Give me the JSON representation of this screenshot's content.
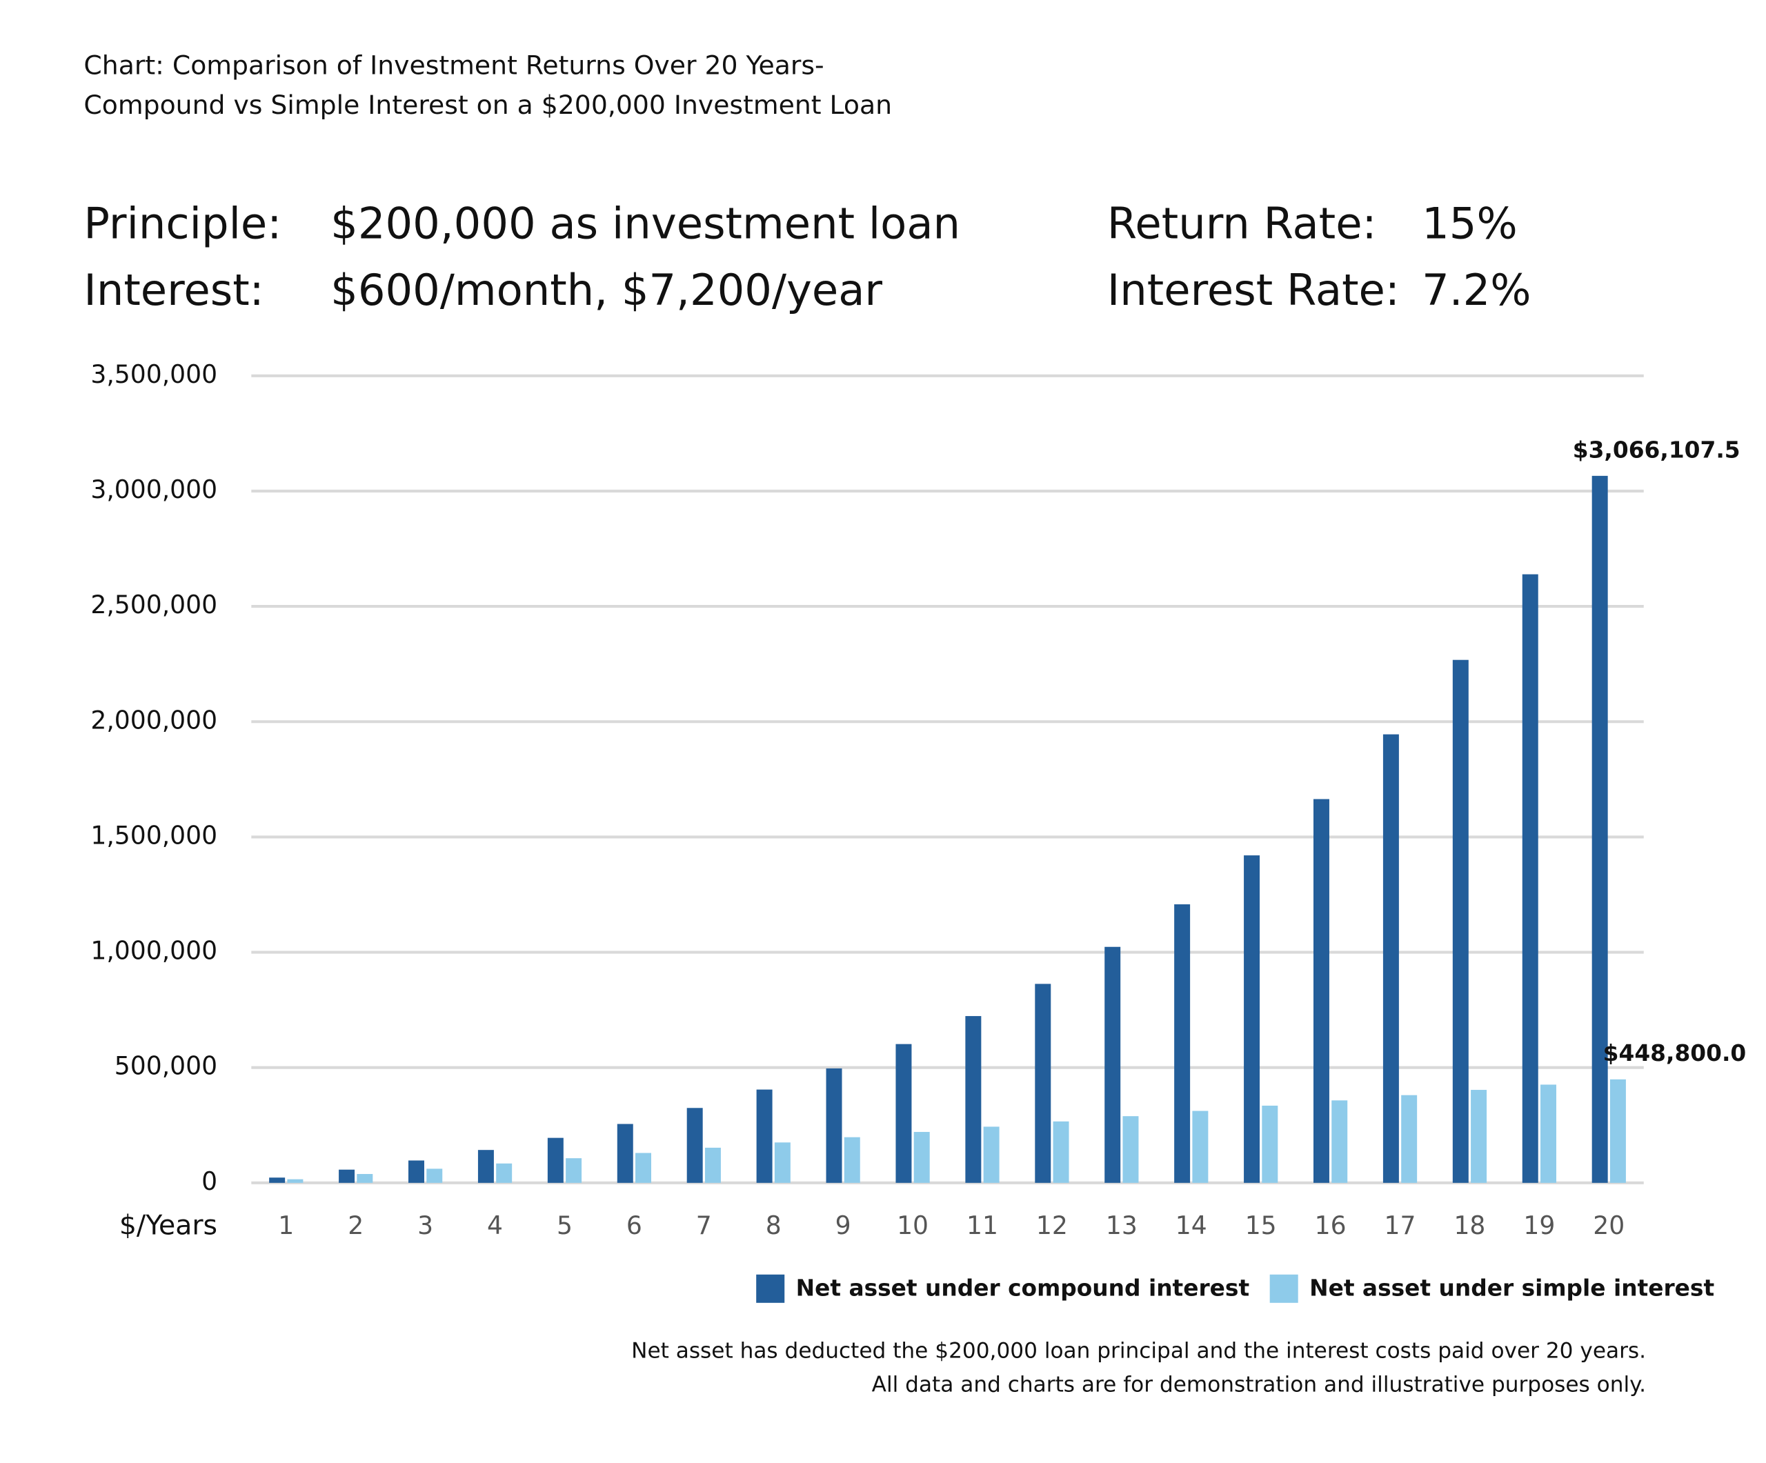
{
  "chart_data": {
    "type": "bar",
    "title": [
      "Chart: Comparison of Investment Returns Over 20 Years-",
      "Compound vs Simple Interest on a $200,000 Investment Loan"
    ],
    "info": [
      [
        "Principle:",
        "$200,000 as investment loan",
        "Return Rate:",
        "15%"
      ],
      [
        "Interest:",
        "$600/month, $7,200/year",
        "Interest Rate:",
        "7.2%"
      ]
    ],
    "x_label": "$/Years",
    "categories": [
      "1",
      "2",
      "3",
      "4",
      "5",
      "6",
      "7",
      "8",
      "9",
      "10",
      "11",
      "12",
      "13",
      "14",
      "15",
      "16",
      "17",
      "18",
      "19",
      "20"
    ],
    "series": [
      {
        "name": "Net asset under compound interest",
        "color": "#235e9a",
        "values": [
          22800,
          57300,
          96975,
          142600,
          195100,
          255400,
          324800,
          404600,
          496400,
          601900,
          723300,
          862900,
          1023400,
          1207900,
          1420200,
          1664300,
          1945100,
          2267900,
          2639200,
          3066107.5
        ],
        "value_labels": [
          null,
          null,
          null,
          null,
          null,
          null,
          null,
          null,
          null,
          null,
          null,
          null,
          null,
          null,
          null,
          null,
          null,
          null,
          null,
          "$3,066,107.5"
        ]
      },
      {
        "name": "Net asset under simple interest",
        "color": "#8ecbea",
        "values": [
          15600,
          38400,
          61200,
          84000,
          106800,
          129600,
          152400,
          175200,
          198000,
          220800,
          243600,
          266400,
          289200,
          312000,
          334800,
          357600,
          380400,
          403200,
          426000,
          448800
        ],
        "value_labels": [
          null,
          null,
          null,
          null,
          null,
          null,
          null,
          null,
          null,
          null,
          null,
          null,
          null,
          null,
          null,
          null,
          null,
          null,
          null,
          "$448,800.0"
        ]
      }
    ],
    "ylim": [
      0,
      3500000
    ],
    "yticks": [
      0,
      {
        "value": 500000,
        "label": "500,000"
      },
      {
        "value": 1000000,
        "label": "1,000,000"
      },
      {
        "value": 1500000,
        "label": "1,500,000"
      },
      {
        "value": 2000000,
        "label": "2,000,000"
      },
      {
        "value": 2500000,
        "label": "2,500,000"
      },
      {
        "value": 3000000,
        "label": "3,000,000"
      },
      {
        "value": 3500000,
        "label": "3,500,000"
      }
    ],
    "grid": true,
    "notes": [
      "Net asset has deducted the $200,000 loan principal and the interest costs paid over 20 years.",
      "All data and charts are for demonstration and illustrative purposes only."
    ]
  }
}
